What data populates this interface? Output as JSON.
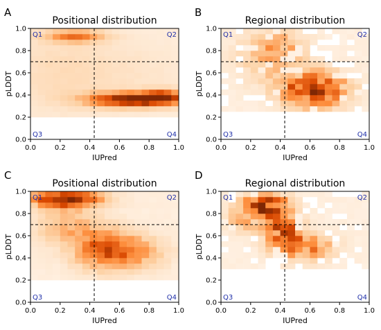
{
  "chart_data": [
    {
      "letter": "A",
      "type": "heatmap",
      "title": "Positional distribution",
      "xlabel": "IUPred",
      "ylabel": "pLDDT",
      "xlim": [
        0.0,
        1.0
      ],
      "ylim": [
        0.0,
        1.0
      ],
      "xticks": [
        "0.0",
        "0.2",
        "0.4",
        "0.6",
        "0.8",
        "1.0"
      ],
      "yticks": [
        "0.0",
        "0.2",
        "0.4",
        "0.6",
        "0.8",
        "1.0"
      ],
      "thresholds": {
        "x": 0.43,
        "y": 0.7
      },
      "quadrant_labels": [
        "Q1",
        "Q2",
        "Q3",
        "Q4"
      ],
      "density_blobs": [
        {
          "x": 0.72,
          "y": 0.36,
          "sx": 0.22,
          "sy": 0.045,
          "w": 1.0
        },
        {
          "x": 0.9,
          "y": 0.4,
          "sx": 0.08,
          "sy": 0.04,
          "w": 0.4
        },
        {
          "x": 0.3,
          "y": 0.93,
          "sx": 0.14,
          "sy": 0.04,
          "w": 0.5
        },
        {
          "x": 0.2,
          "y": 0.6,
          "sx": 0.25,
          "sy": 0.25,
          "w": 0.12
        },
        {
          "x": 0.7,
          "y": 0.6,
          "sx": 0.25,
          "sy": 0.2,
          "w": 0.06
        }
      ],
      "floor": 0.05,
      "ymin_data": 0.18,
      "noise": 0.08
    },
    {
      "letter": "B",
      "type": "heatmap",
      "title": "Regional distribution",
      "xlabel": "IUPred",
      "ylabel": "pLDDT",
      "xlim": [
        0.0,
        1.0
      ],
      "ylim": [
        0.0,
        1.0
      ],
      "xticks": [
        "0.0",
        "0.2",
        "0.4",
        "0.6",
        "0.8",
        "1.0"
      ],
      "yticks": [
        "0.0",
        "0.2",
        "0.4",
        "0.6",
        "0.8",
        "1.0"
      ],
      "thresholds": {
        "x": 0.43,
        "y": 0.7
      },
      "quadrant_labels": [
        "Q1",
        "Q2",
        "Q3",
        "Q4"
      ],
      "density_blobs": [
        {
          "x": 0.63,
          "y": 0.45,
          "sx": 0.14,
          "sy": 0.1,
          "w": 0.9
        },
        {
          "x": 0.35,
          "y": 0.75,
          "sx": 0.15,
          "sy": 0.15,
          "w": 0.3
        },
        {
          "x": 0.4,
          "y": 0.88,
          "sx": 0.06,
          "sy": 0.06,
          "w": 0.25
        }
      ],
      "floor": 0.04,
      "ymin_data": 0.25,
      "noise": 0.45
    },
    {
      "letter": "C",
      "type": "heatmap",
      "title": "Positional distribution",
      "xlabel": "IUPred",
      "ylabel": "pLDDT",
      "xlim": [
        0.0,
        1.0
      ],
      "ylim": [
        0.0,
        1.0
      ],
      "xticks": [
        "0.0",
        "0.2",
        "0.4",
        "0.6",
        "0.8",
        "1.0"
      ],
      "yticks": [
        "0.0",
        "0.2",
        "0.4",
        "0.6",
        "0.8",
        "1.0"
      ],
      "thresholds": {
        "x": 0.43,
        "y": 0.7
      },
      "quadrant_labels": [
        "Q1",
        "Q2",
        "Q3",
        "Q4"
      ],
      "density_blobs": [
        {
          "x": 0.24,
          "y": 0.93,
          "sx": 0.16,
          "sy": 0.05,
          "w": 0.95
        },
        {
          "x": 0.5,
          "y": 0.48,
          "sx": 0.14,
          "sy": 0.12,
          "w": 0.6
        },
        {
          "x": 0.25,
          "y": 0.7,
          "sx": 0.15,
          "sy": 0.12,
          "w": 0.3
        },
        {
          "x": 0.72,
          "y": 0.45,
          "sx": 0.14,
          "sy": 0.1,
          "w": 0.3
        }
      ],
      "floor": 0.05,
      "ymin_data": 0.2,
      "noise": 0.2
    },
    {
      "letter": "D",
      "type": "heatmap",
      "title": "Regional distribution",
      "xlabel": "IUPred",
      "ylabel": "pLDDT",
      "xlim": [
        0.0,
        1.0
      ],
      "ylim": [
        0.0,
        1.0
      ],
      "xticks": [
        "0.0",
        "0.2",
        "0.4",
        "0.6",
        "0.8",
        "1.0"
      ],
      "yticks": [
        "0.0",
        "0.2",
        "0.4",
        "0.6",
        "0.8",
        "1.0"
      ],
      "thresholds": {
        "x": 0.43,
        "y": 0.7
      },
      "quadrant_labels": [
        "Q1",
        "Q2",
        "Q3",
        "Q4"
      ],
      "density_blobs": [
        {
          "x": 0.3,
          "y": 0.88,
          "sx": 0.1,
          "sy": 0.06,
          "w": 0.8
        },
        {
          "x": 0.42,
          "y": 0.65,
          "sx": 0.08,
          "sy": 0.12,
          "w": 0.6
        },
        {
          "x": 0.58,
          "y": 0.5,
          "sx": 0.12,
          "sy": 0.08,
          "w": 0.45
        },
        {
          "x": 0.2,
          "y": 0.75,
          "sx": 0.12,
          "sy": 0.08,
          "w": 0.3
        }
      ],
      "floor": 0.04,
      "ymin_data": 0.28,
      "noise": 0.45
    }
  ],
  "colors": {
    "colormap": [
      "#fff5eb",
      "#fdd0a2",
      "#fd8d3c",
      "#d94801",
      "#7f2704"
    ],
    "threshold_line": "#000000",
    "quadrant_label": "#1f2fa8"
  }
}
